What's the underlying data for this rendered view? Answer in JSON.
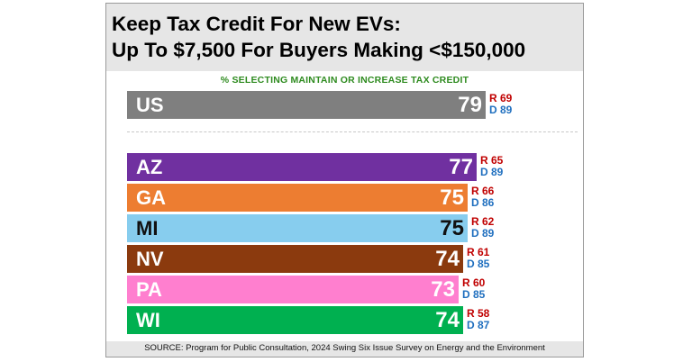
{
  "title_line1": "Keep Tax Credit For New EVs:",
  "title_line2": "Up To $7,500 For Buyers Making <$150,000",
  "source": "SOURCE: Program for Public Consultation, 2024 Swing Six Issue Survey on Energy and the Environment",
  "chart_data": {
    "type": "bar",
    "orientation": "horizontal",
    "title": "Keep Tax Credit For New EVs: Up To $7,500 For Buyers Making <$150,000",
    "subtitle": "% SELECTING MAINTAIN OR INCREASE TAX CREDIT",
    "xlim": [
      0,
      100
    ],
    "grid": false,
    "categories": [
      "US",
      "AZ",
      "GA",
      "MI",
      "NV",
      "PA",
      "WI"
    ],
    "values": [
      79,
      77,
      75,
      75,
      74,
      73,
      74
    ],
    "value_labels": [
      "79",
      "77",
      "75",
      "75",
      "74",
      "73",
      "74"
    ],
    "republican_labels": [
      "R 69",
      "R 65",
      "R 66",
      "R 62",
      "R 61",
      "R 60",
      "R 58"
    ],
    "democrat_labels": [
      "D 89",
      "D 89",
      "D 86",
      "D 89",
      "D 85",
      "D 85",
      "D 87"
    ],
    "republican": [
      69,
      65,
      66,
      62,
      61,
      60,
      58
    ],
    "democrat": [
      89,
      89,
      86,
      89,
      85,
      85,
      87
    ],
    "colors": [
      "#7f7f7f",
      "#7030a0",
      "#ed7d31",
      "#87cdee",
      "#8b3a0e",
      "#ff7fcf",
      "#00b050"
    ],
    "dark_label_categories": [
      "MI"
    ],
    "republican_color": "#c00000",
    "democrat_color": "#1f6fbf"
  }
}
